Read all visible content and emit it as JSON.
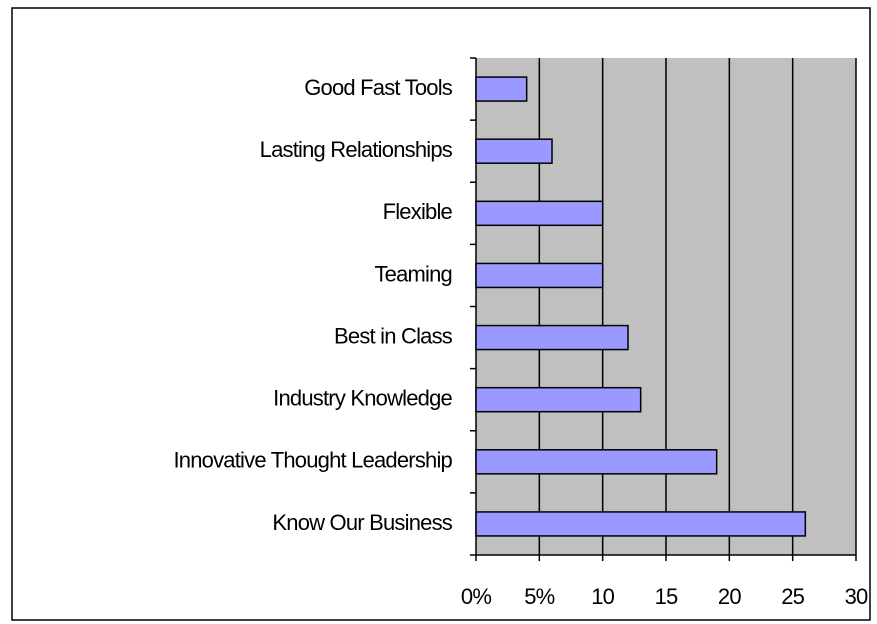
{
  "chart_data": {
    "type": "hbar",
    "categories": [
      "Good Fast Tools",
      "Lasting Relationships",
      "Flexible",
      "Teaming",
      "Best in Class",
      "Industry Knowledge",
      "Innovative Thought Leadership",
      "Know Our Business"
    ],
    "values": [
      4,
      6,
      10,
      10,
      12,
      13,
      19,
      26
    ],
    "color": "#9999ff",
    "background": "#c0c0c0",
    "xlim": [
      0,
      30
    ],
    "xticks": [
      {
        "value": 0,
        "label": "0%"
      },
      {
        "value": 5,
        "label": "5%"
      },
      10,
      15,
      20,
      25,
      30
    ],
    "grid": true
  }
}
